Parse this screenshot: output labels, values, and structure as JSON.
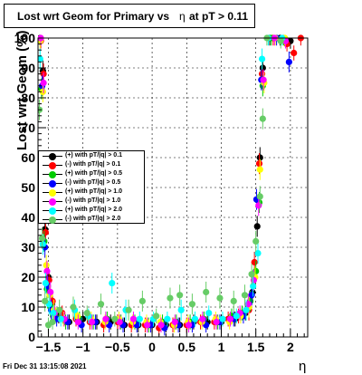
{
  "title": {
    "prefix": "Lost wrt Geom for Primary vs",
    "symbol": "η",
    "suffix": "at pT > 0.11"
  },
  "datestamp": "Fri Dec 31 13:15:08 2021",
  "chart_data": {
    "type": "scatter",
    "title": "Lost wrt Geom for Primary vs η at pT > 0.11",
    "xlabel": "η",
    "ylabel": "Lost wrt Geom (%)",
    "xlim": [
      -1.65,
      2.25
    ],
    "ylim": [
      0,
      100
    ],
    "xticks": [
      -1.5,
      -1,
      -0.5,
      0,
      0.5,
      1,
      1.5,
      2
    ],
    "xtick_labels": [
      "−1.5",
      "−1",
      "−0.5",
      "0",
      "0.5",
      "1",
      "1.5",
      "2"
    ],
    "yticks": [
      0,
      10,
      20,
      30,
      40,
      50,
      60,
      70,
      80,
      90,
      100
    ],
    "ytick_labels": [
      "0",
      "10",
      "20",
      "30",
      "40",
      "50",
      "60",
      "70",
      "80",
      "90",
      "100"
    ],
    "grid": true,
    "legend_position": "left",
    "series": [
      {
        "name": "(+) with pT/|q| > 0.1",
        "color": "#000000",
        "points": [
          [
            -1.62,
            100
          ],
          [
            -1.58,
            89
          ],
          [
            -1.55,
            36
          ],
          [
            -1.5,
            20
          ],
          [
            -1.45,
            11
          ],
          [
            -1.35,
            7
          ],
          [
            -1.2,
            5
          ],
          [
            -1.0,
            6
          ],
          [
            -0.8,
            5
          ],
          [
            -0.6,
            5
          ],
          [
            -0.4,
            4
          ],
          [
            -0.2,
            4
          ],
          [
            0.0,
            4
          ],
          [
            0.2,
            4
          ],
          [
            0.4,
            4
          ],
          [
            0.6,
            5
          ],
          [
            0.8,
            5
          ],
          [
            1.0,
            5
          ],
          [
            1.2,
            6
          ],
          [
            1.35,
            8
          ],
          [
            1.45,
            15
          ],
          [
            1.52,
            37
          ],
          [
            1.56,
            60
          ],
          [
            1.6,
            90
          ],
          [
            1.7,
            100
          ],
          [
            1.85,
            100
          ],
          [
            2.0,
            99
          ]
        ]
      },
      {
        "name": "(-) with pT/|q| > 0.1",
        "color": "#ff0000",
        "points": [
          [
            -1.61,
            99
          ],
          [
            -1.57,
            88
          ],
          [
            -1.54,
            35
          ],
          [
            -1.49,
            19
          ],
          [
            -1.44,
            12
          ],
          [
            -1.3,
            8
          ],
          [
            -1.1,
            6
          ],
          [
            -0.9,
            5
          ],
          [
            -0.7,
            4
          ],
          [
            -0.5,
            5
          ],
          [
            -0.3,
            4
          ],
          [
            -0.1,
            4
          ],
          [
            0.1,
            3
          ],
          [
            0.3,
            4
          ],
          [
            0.5,
            4
          ],
          [
            0.7,
            5
          ],
          [
            0.9,
            5
          ],
          [
            1.1,
            6
          ],
          [
            1.25,
            7
          ],
          [
            1.4,
            9
          ],
          [
            1.48,
            25
          ],
          [
            1.55,
            58
          ],
          [
            1.59,
            88
          ],
          [
            1.75,
            100
          ],
          [
            1.95,
            98
          ],
          [
            2.05,
            95
          ],
          [
            2.15,
            100
          ]
        ]
      },
      {
        "name": "(+) with pT/|q| > 0.5",
        "color": "#00cc00",
        "points": [
          [
            -1.6,
            83
          ],
          [
            -1.56,
            32
          ],
          [
            -1.52,
            16
          ],
          [
            -1.47,
            10
          ],
          [
            -1.4,
            7
          ],
          [
            -1.25,
            5
          ],
          [
            -1.05,
            6
          ],
          [
            -0.85,
            5
          ],
          [
            -0.65,
            6
          ],
          [
            -0.45,
            5
          ],
          [
            -0.25,
            5
          ],
          [
            -0.05,
            4
          ],
          [
            0.15,
            5
          ],
          [
            0.35,
            5
          ],
          [
            0.55,
            5
          ],
          [
            0.75,
            6
          ],
          [
            0.95,
            5
          ],
          [
            1.15,
            7
          ],
          [
            1.3,
            8
          ],
          [
            1.42,
            12
          ],
          [
            1.5,
            22
          ],
          [
            1.55,
            45
          ],
          [
            1.6,
            84
          ],
          [
            1.72,
            100
          ],
          [
            1.9,
            100
          ]
        ]
      },
      {
        "name": "(-) with pT/|q| > 0.5",
        "color": "#0000ff",
        "points": [
          [
            -1.59,
            84
          ],
          [
            -1.55,
            30
          ],
          [
            -1.51,
            17
          ],
          [
            -1.46,
            9
          ],
          [
            -1.38,
            6
          ],
          [
            -1.22,
            5
          ],
          [
            -1.02,
            4
          ],
          [
            -0.82,
            5
          ],
          [
            -0.62,
            4
          ],
          [
            -0.42,
            4
          ],
          [
            -0.22,
            4
          ],
          [
            -0.02,
            4
          ],
          [
            0.18,
            3
          ],
          [
            0.38,
            4
          ],
          [
            0.58,
            4
          ],
          [
            0.78,
            4
          ],
          [
            0.98,
            5
          ],
          [
            1.18,
            6
          ],
          [
            1.32,
            7
          ],
          [
            1.44,
            14
          ],
          [
            1.51,
            46
          ],
          [
            1.58,
            86
          ],
          [
            1.8,
            100
          ],
          [
            1.98,
            92
          ]
        ]
      },
      {
        "name": "(+) with pT/|q| > 1.0",
        "color": "#ffff00",
        "points": [
          [
            -1.62,
            99
          ],
          [
            -1.58,
            82
          ],
          [
            -1.53,
            24
          ],
          [
            -1.48,
            14
          ],
          [
            -1.42,
            9
          ],
          [
            -1.28,
            6
          ],
          [
            -1.08,
            7
          ],
          [
            -0.88,
            6
          ],
          [
            -0.68,
            5
          ],
          [
            -0.48,
            6
          ],
          [
            -0.28,
            5
          ],
          [
            -0.08,
            5
          ],
          [
            0.12,
            5
          ],
          [
            0.32,
            4
          ],
          [
            0.52,
            5
          ],
          [
            0.72,
            5
          ],
          [
            0.92,
            6
          ],
          [
            1.12,
            5
          ],
          [
            1.28,
            7
          ],
          [
            1.4,
            10
          ],
          [
            1.49,
            20
          ],
          [
            1.56,
            56
          ],
          [
            1.62,
            85
          ],
          [
            1.78,
            100
          ],
          [
            1.92,
            100
          ]
        ]
      },
      {
        "name": "(-) with pT/|q| > 1.0",
        "color": "#ff00ff",
        "points": [
          [
            -1.61,
            100
          ],
          [
            -1.57,
            85
          ],
          [
            -1.52,
            22
          ],
          [
            -1.47,
            15
          ],
          [
            -1.41,
            8
          ],
          [
            -1.27,
            6
          ],
          [
            -1.07,
            5
          ],
          [
            -0.87,
            5
          ],
          [
            -0.67,
            6
          ],
          [
            -0.47,
            5
          ],
          [
            -0.27,
            6
          ],
          [
            -0.07,
            4
          ],
          [
            0.13,
            4
          ],
          [
            0.33,
            5
          ],
          [
            0.53,
            4
          ],
          [
            0.73,
            6
          ],
          [
            0.93,
            5
          ],
          [
            1.13,
            6
          ],
          [
            1.27,
            8
          ],
          [
            1.39,
            11
          ],
          [
            1.47,
            19
          ],
          [
            1.54,
            44
          ],
          [
            1.61,
            86
          ],
          [
            1.77,
            100
          ],
          [
            1.93,
            99
          ]
        ]
      },
      {
        "name": "(+) with pT/|q| > 2.0",
        "color": "#00ffff",
        "points": [
          [
            -1.62,
            93
          ],
          [
            -1.58,
            31
          ],
          [
            -1.54,
            18
          ],
          [
            -1.49,
            11
          ],
          [
            -1.43,
            8
          ],
          [
            -1.32,
            6
          ],
          [
            -1.12,
            9
          ],
          [
            -0.92,
            7
          ],
          [
            -0.58,
            18
          ],
          [
            -0.38,
            9
          ],
          [
            -0.18,
            6
          ],
          [
            0.02,
            6
          ],
          [
            0.22,
            6
          ],
          [
            0.42,
            9
          ],
          [
            0.62,
            6
          ],
          [
            0.82,
            8
          ],
          [
            1.02,
            6
          ],
          [
            1.22,
            7
          ],
          [
            1.36,
            9
          ],
          [
            1.46,
            17
          ],
          [
            1.53,
            28
          ],
          [
            1.59,
            93
          ],
          [
            1.68,
            100
          ],
          [
            1.88,
            100
          ]
        ]
      },
      {
        "name": "(-) with pT/|q| > 2.0",
        "color": "#66cc66",
        "points": [
          [
            -1.63,
            76
          ],
          [
            -1.59,
            33
          ],
          [
            -1.55,
            12
          ],
          [
            -1.5,
            4
          ],
          [
            -1.44,
            5
          ],
          [
            -1.34,
            9
          ],
          [
            -1.14,
            10
          ],
          [
            -0.94,
            8
          ],
          [
            -0.74,
            11
          ],
          [
            -0.54,
            6
          ],
          [
            -0.34,
            9
          ],
          [
            -0.14,
            12
          ],
          [
            0.06,
            7
          ],
          [
            0.26,
            13
          ],
          [
            0.4,
            14
          ],
          [
            0.58,
            11
          ],
          [
            0.78,
            15
          ],
          [
            0.98,
            13
          ],
          [
            1.18,
            12
          ],
          [
            1.34,
            14
          ],
          [
            1.44,
            21
          ],
          [
            1.5,
            32
          ],
          [
            1.56,
            47
          ],
          [
            1.6,
            73
          ],
          [
            1.66,
            100
          ],
          [
            1.86,
            99
          ]
        ]
      }
    ]
  }
}
